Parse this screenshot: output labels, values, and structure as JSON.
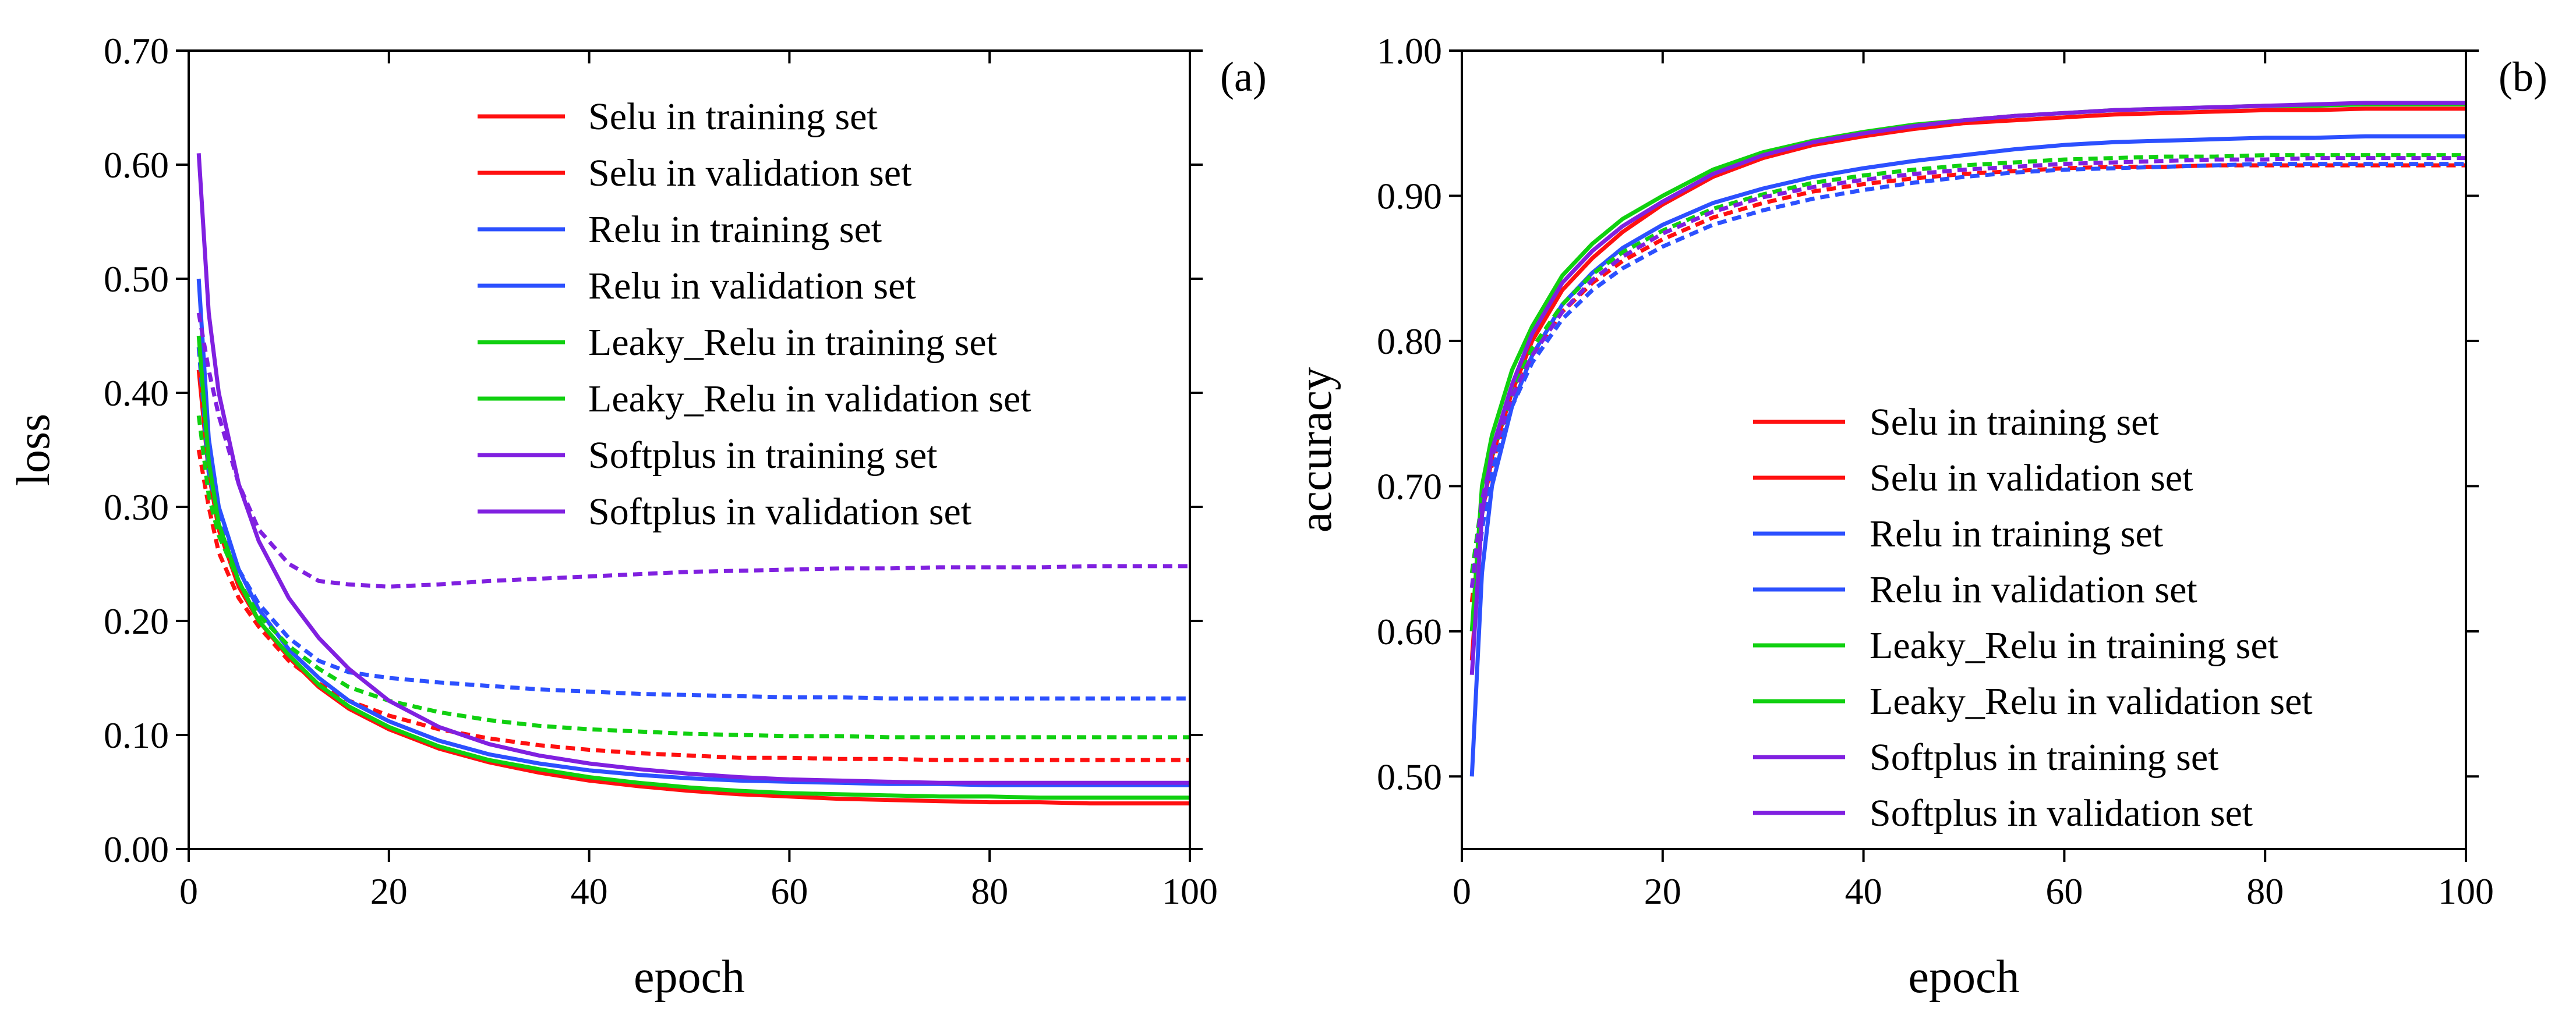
{
  "chart_data": [
    {
      "panel": "(a)",
      "type": "line",
      "xlabel": "epoch",
      "ylabel": "loss",
      "xlim": [
        0,
        100
      ],
      "ylim": [
        0,
        0.7
      ],
      "xticks": [
        0,
        20,
        40,
        60,
        80,
        100
      ],
      "xtick_labels": [
        "0",
        "20",
        "40",
        "60",
        "80",
        "100"
      ],
      "yticks": [
        0,
        0.1,
        0.2,
        0.3,
        0.4,
        0.5,
        0.6,
        0.7
      ],
      "ytick_labels": [
        "0.00",
        "0.10",
        "0.20",
        "0.30",
        "0.40",
        "0.50",
        "0.60",
        "0.70"
      ],
      "grid": false,
      "legend_position": "top-right",
      "series": [
        {
          "name": "Selu in training set",
          "color": "#ff1010",
          "dash": "solid",
          "x": [
            1,
            2,
            3,
            5,
            7,
            10,
            13,
            16,
            20,
            25,
            30,
            35,
            40,
            45,
            50,
            55,
            60,
            65,
            70,
            75,
            80,
            85,
            90,
            95,
            100
          ],
          "y": [
            0.42,
            0.33,
            0.28,
            0.23,
            0.2,
            0.168,
            0.142,
            0.123,
            0.105,
            0.088,
            0.076,
            0.067,
            0.06,
            0.055,
            0.051,
            0.048,
            0.046,
            0.044,
            0.043,
            0.042,
            0.041,
            0.041,
            0.04,
            0.04,
            0.04
          ]
        },
        {
          "name": "Selu in validation set",
          "color": "#ff1010",
          "dash": "dashed",
          "x": [
            1,
            2,
            3,
            5,
            7,
            10,
            13,
            16,
            20,
            25,
            30,
            35,
            40,
            45,
            50,
            55,
            60,
            65,
            70,
            75,
            80,
            85,
            90,
            95,
            100
          ],
          "y": [
            0.35,
            0.3,
            0.26,
            0.22,
            0.195,
            0.165,
            0.145,
            0.13,
            0.117,
            0.105,
            0.097,
            0.091,
            0.087,
            0.084,
            0.082,
            0.08,
            0.08,
            0.079,
            0.079,
            0.078,
            0.078,
            0.078,
            0.078,
            0.078,
            0.078
          ]
        },
        {
          "name": "Relu in training set",
          "color": "#2c50ff",
          "dash": "solid",
          "x": [
            1,
            2,
            3,
            5,
            7,
            10,
            13,
            16,
            20,
            25,
            30,
            35,
            40,
            45,
            50,
            55,
            60,
            65,
            70,
            75,
            80,
            85,
            90,
            95,
            100
          ],
          "y": [
            0.5,
            0.36,
            0.3,
            0.245,
            0.21,
            0.175,
            0.15,
            0.13,
            0.112,
            0.095,
            0.083,
            0.075,
            0.069,
            0.065,
            0.062,
            0.06,
            0.059,
            0.058,
            0.057,
            0.057,
            0.056,
            0.056,
            0.056,
            0.056,
            0.056
          ]
        },
        {
          "name": "Relu in validation set",
          "color": "#2c50ff",
          "dash": "dashed",
          "x": [
            1,
            2,
            3,
            5,
            7,
            10,
            13,
            16,
            20,
            25,
            30,
            35,
            40,
            45,
            50,
            55,
            60,
            65,
            70,
            75,
            80,
            85,
            90,
            95,
            100
          ],
          "y": [
            0.44,
            0.33,
            0.29,
            0.245,
            0.215,
            0.185,
            0.165,
            0.155,
            0.15,
            0.146,
            0.143,
            0.14,
            0.138,
            0.136,
            0.135,
            0.134,
            0.133,
            0.133,
            0.132,
            0.132,
            0.132,
            0.132,
            0.132,
            0.132,
            0.132
          ]
        },
        {
          "name": "Leaky_Relu in training set",
          "color": "#10d010",
          "dash": "solid",
          "x": [
            1,
            2,
            3,
            5,
            7,
            10,
            13,
            16,
            20,
            25,
            30,
            35,
            40,
            45,
            50,
            55,
            60,
            65,
            70,
            75,
            80,
            85,
            90,
            95,
            100
          ],
          "y": [
            0.45,
            0.34,
            0.285,
            0.235,
            0.2,
            0.17,
            0.144,
            0.125,
            0.107,
            0.09,
            0.078,
            0.07,
            0.063,
            0.058,
            0.054,
            0.051,
            0.049,
            0.048,
            0.047,
            0.046,
            0.046,
            0.045,
            0.045,
            0.045,
            0.045
          ]
        },
        {
          "name": "Leaky_Relu in validation set",
          "color": "#10d010",
          "dash": "dashed",
          "x": [
            1,
            2,
            3,
            5,
            7,
            10,
            13,
            16,
            20,
            25,
            30,
            35,
            40,
            45,
            50,
            55,
            60,
            65,
            70,
            75,
            80,
            85,
            90,
            95,
            100
          ],
          "y": [
            0.38,
            0.31,
            0.275,
            0.235,
            0.205,
            0.178,
            0.158,
            0.142,
            0.13,
            0.12,
            0.113,
            0.108,
            0.105,
            0.103,
            0.101,
            0.1,
            0.099,
            0.099,
            0.098,
            0.098,
            0.098,
            0.098,
            0.098,
            0.098,
            0.098
          ]
        },
        {
          "name": "Softplus in training set",
          "color": "#8020e0",
          "dash": "solid",
          "x": [
            1,
            2,
            3,
            5,
            7,
            10,
            13,
            16,
            20,
            25,
            30,
            35,
            40,
            45,
            50,
            55,
            60,
            65,
            70,
            75,
            80,
            85,
            90,
            95,
            100
          ],
          "y": [
            0.61,
            0.47,
            0.4,
            0.32,
            0.27,
            0.22,
            0.185,
            0.158,
            0.13,
            0.107,
            0.092,
            0.082,
            0.075,
            0.07,
            0.066,
            0.063,
            0.061,
            0.06,
            0.059,
            0.058,
            0.058,
            0.058,
            0.058,
            0.058,
            0.058
          ]
        },
        {
          "name": "Softplus in validation set",
          "color": "#8020e0",
          "dash": "dashed",
          "x": [
            1,
            2,
            3,
            5,
            7,
            10,
            13,
            16,
            20,
            25,
            30,
            35,
            40,
            45,
            50,
            55,
            60,
            65,
            70,
            75,
            80,
            85,
            90,
            95,
            100
          ],
          "y": [
            0.47,
            0.42,
            0.38,
            0.32,
            0.28,
            0.25,
            0.235,
            0.232,
            0.23,
            0.232,
            0.235,
            0.237,
            0.239,
            0.241,
            0.243,
            0.244,
            0.245,
            0.246,
            0.246,
            0.247,
            0.247,
            0.247,
            0.248,
            0.248,
            0.248
          ]
        }
      ]
    },
    {
      "panel": "(b)",
      "type": "line",
      "xlabel": "epoch",
      "ylabel": "accuracy",
      "xlim": [
        0,
        100
      ],
      "ylim": [
        0.45,
        1.0
      ],
      "xticks": [
        0,
        20,
        40,
        60,
        80,
        100
      ],
      "xtick_labels": [
        "0",
        "20",
        "40",
        "60",
        "80",
        "100"
      ],
      "yticks": [
        0.5,
        0.6,
        0.7,
        0.8,
        0.9,
        1.0
      ],
      "ytick_labels": [
        "0.50",
        "0.60",
        "0.70",
        "0.80",
        "0.90",
        "1.00"
      ],
      "grid": false,
      "legend_position": "bottom-right",
      "series": [
        {
          "name": "Selu in training set",
          "color": "#ff1010",
          "dash": "solid",
          "x": [
            1,
            2,
            3,
            5,
            7,
            10,
            13,
            16,
            20,
            25,
            30,
            35,
            40,
            45,
            50,
            55,
            60,
            65,
            70,
            75,
            80,
            85,
            90,
            95,
            100
          ],
          "y": [
            0.58,
            0.68,
            0.72,
            0.765,
            0.8,
            0.835,
            0.857,
            0.875,
            0.894,
            0.913,
            0.926,
            0.935,
            0.941,
            0.946,
            0.95,
            0.952,
            0.954,
            0.956,
            0.957,
            0.958,
            0.959,
            0.959,
            0.96,
            0.96,
            0.96
          ]
        },
        {
          "name": "Selu in validation set",
          "color": "#ff1010",
          "dash": "dashed",
          "x": [
            1,
            2,
            3,
            5,
            7,
            10,
            13,
            16,
            20,
            25,
            30,
            35,
            40,
            45,
            50,
            55,
            60,
            65,
            70,
            75,
            80,
            85,
            90,
            95,
            100
          ],
          "y": [
            0.62,
            0.68,
            0.715,
            0.76,
            0.79,
            0.82,
            0.84,
            0.855,
            0.87,
            0.885,
            0.895,
            0.903,
            0.908,
            0.912,
            0.915,
            0.917,
            0.919,
            0.92,
            0.92,
            0.921,
            0.921,
            0.921,
            0.921,
            0.921,
            0.921
          ]
        },
        {
          "name": "Relu in training set",
          "color": "#2c50ff",
          "dash": "solid",
          "x": [
            1,
            2,
            3,
            5,
            7,
            10,
            13,
            16,
            20,
            25,
            30,
            35,
            40,
            45,
            50,
            55,
            60,
            65,
            70,
            75,
            80,
            85,
            90,
            95,
            100
          ],
          "y": [
            0.5,
            0.64,
            0.7,
            0.755,
            0.79,
            0.825,
            0.847,
            0.864,
            0.88,
            0.895,
            0.905,
            0.913,
            0.919,
            0.924,
            0.928,
            0.932,
            0.935,
            0.937,
            0.938,
            0.939,
            0.94,
            0.94,
            0.941,
            0.941,
            0.941
          ]
        },
        {
          "name": "Relu in validation set",
          "color": "#2c50ff",
          "dash": "dashed",
          "x": [
            1,
            2,
            3,
            5,
            7,
            10,
            13,
            16,
            20,
            25,
            30,
            35,
            40,
            45,
            50,
            55,
            60,
            65,
            70,
            75,
            80,
            85,
            90,
            95,
            100
          ],
          "y": [
            0.6,
            0.67,
            0.71,
            0.755,
            0.785,
            0.815,
            0.835,
            0.85,
            0.865,
            0.88,
            0.89,
            0.898,
            0.904,
            0.909,
            0.913,
            0.916,
            0.918,
            0.919,
            0.92,
            0.921,
            0.922,
            0.922,
            0.922,
            0.922,
            0.922
          ]
        },
        {
          "name": "Leaky_Relu in training set",
          "color": "#10d010",
          "dash": "solid",
          "x": [
            1,
            2,
            3,
            5,
            7,
            10,
            13,
            16,
            20,
            25,
            30,
            35,
            40,
            45,
            50,
            55,
            60,
            65,
            70,
            75,
            80,
            85,
            90,
            95,
            100
          ],
          "y": [
            0.6,
            0.7,
            0.735,
            0.78,
            0.81,
            0.845,
            0.867,
            0.884,
            0.9,
            0.918,
            0.93,
            0.938,
            0.944,
            0.949,
            0.952,
            0.955,
            0.957,
            0.959,
            0.96,
            0.961,
            0.962,
            0.962,
            0.963,
            0.963,
            0.963
          ]
        },
        {
          "name": "Leaky_Relu in validation set",
          "color": "#10d010",
          "dash": "dashed",
          "x": [
            1,
            2,
            3,
            5,
            7,
            10,
            13,
            16,
            20,
            25,
            30,
            35,
            40,
            45,
            50,
            55,
            60,
            65,
            70,
            75,
            80,
            85,
            90,
            95,
            100
          ],
          "y": [
            0.64,
            0.69,
            0.72,
            0.765,
            0.795,
            0.825,
            0.846,
            0.861,
            0.876,
            0.891,
            0.901,
            0.909,
            0.914,
            0.918,
            0.921,
            0.923,
            0.925,
            0.926,
            0.927,
            0.927,
            0.928,
            0.928,
            0.928,
            0.928,
            0.928
          ]
        },
        {
          "name": "Softplus in training set",
          "color": "#8020e0",
          "dash": "solid",
          "x": [
            1,
            2,
            3,
            5,
            7,
            10,
            13,
            16,
            20,
            25,
            30,
            35,
            40,
            45,
            50,
            55,
            60,
            65,
            70,
            75,
            80,
            85,
            90,
            95,
            100
          ],
          "y": [
            0.57,
            0.68,
            0.725,
            0.77,
            0.805,
            0.84,
            0.862,
            0.879,
            0.896,
            0.915,
            0.928,
            0.937,
            0.943,
            0.948,
            0.952,
            0.955,
            0.957,
            0.959,
            0.96,
            0.961,
            0.962,
            0.963,
            0.964,
            0.964,
            0.964
          ]
        },
        {
          "name": "Softplus in validation set",
          "color": "#8020e0",
          "dash": "dashed",
          "x": [
            1,
            2,
            3,
            5,
            7,
            10,
            13,
            16,
            20,
            25,
            30,
            35,
            40,
            45,
            50,
            55,
            60,
            65,
            70,
            75,
            80,
            85,
            90,
            95,
            100
          ],
          "y": [
            0.63,
            0.69,
            0.72,
            0.762,
            0.79,
            0.82,
            0.842,
            0.858,
            0.874,
            0.889,
            0.899,
            0.906,
            0.911,
            0.915,
            0.918,
            0.92,
            0.922,
            0.923,
            0.924,
            0.925,
            0.925,
            0.926,
            0.926,
            0.926,
            0.926
          ]
        }
      ]
    }
  ]
}
